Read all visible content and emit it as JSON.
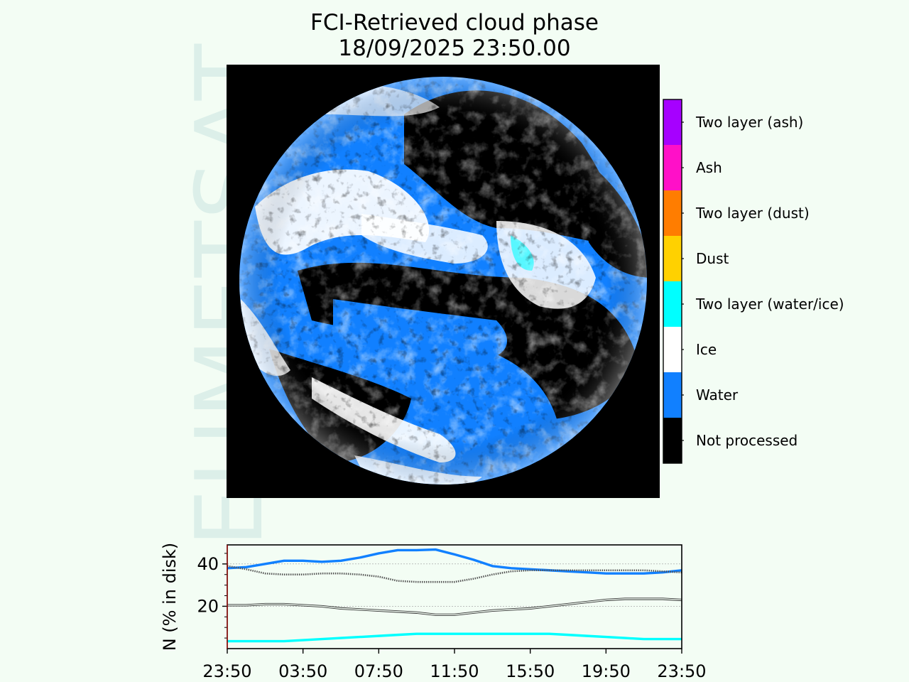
{
  "title_line1": "FCI-Retrieved cloud phase",
  "title_line2": "18/09/2025 23:50.00",
  "watermark": "EUMETSAT",
  "colors": {
    "water": "#1180ff",
    "ice": "#ffffff",
    "two_layer_water_ice": "#00ffff",
    "not_processed": "#000000",
    "background": "#f3fdf4"
  },
  "colorbar": {
    "classes": [
      {
        "label": "Two layer (ash)",
        "color": "#a600ff"
      },
      {
        "label": "Ash",
        "color": "#ff10c8"
      },
      {
        "label": "Two layer (dust)",
        "color": "#ff7d00"
      },
      {
        "label": "Dust",
        "color": "#ffd100"
      },
      {
        "label": "Two layer (water/ice)",
        "color": "#00ffff"
      },
      {
        "label": "Ice",
        "color": "#ffffff"
      },
      {
        "label": "Water",
        "color": "#1180ff"
      },
      {
        "label": "Not processed",
        "color": "#000000"
      }
    ]
  },
  "chart_data": {
    "type": "line",
    "ylabel": "N (% in disk)",
    "x_ticks": [
      "23:50",
      "03:50",
      "07:50",
      "11:50",
      "15:50",
      "19:50",
      "23:50"
    ],
    "x": [
      0,
      1,
      2,
      3,
      4,
      5,
      6,
      7,
      8,
      9,
      10,
      11,
      12,
      13,
      14,
      15,
      16,
      17,
      18,
      19,
      20,
      21,
      22,
      23,
      24
    ],
    "yticks": [
      20,
      40
    ],
    "ylim": [
      0,
      49
    ],
    "grid": "horizontal",
    "series": [
      {
        "color": "#1180ff",
        "style": "solid-thick",
        "values": [
          38,
          38.5,
          40,
          41.5,
          41.5,
          41,
          41.5,
          43,
          45,
          46.5,
          46.5,
          46.8,
          44.5,
          42,
          39,
          38,
          37.5,
          37,
          36.5,
          36,
          35.5,
          35.5,
          35.5,
          36,
          37
        ]
      },
      {
        "color": "#555555",
        "style": "dotted",
        "values": [
          39,
          37.5,
          35.5,
          35,
          35,
          35.5,
          35.5,
          35,
          34,
          32,
          31.5,
          31.5,
          31.5,
          33,
          35,
          36.5,
          37,
          37,
          37,
          37,
          37,
          37,
          37,
          36.5,
          36
        ]
      },
      {
        "color": "#333333",
        "style": "thin-double",
        "values": [
          20.5,
          20.5,
          21,
          21,
          20.5,
          20,
          19,
          18.5,
          18,
          17.5,
          17,
          16,
          16,
          17,
          18,
          18.5,
          19,
          20,
          21,
          22,
          23,
          23.5,
          23.5,
          23.5,
          23
        ]
      },
      {
        "color": "#00ffff",
        "style": "solid-thick",
        "values": [
          3.5,
          3.5,
          3.5,
          3.5,
          4,
          4.5,
          5,
          5.5,
          6,
          6.5,
          7,
          7,
          7,
          7,
          7,
          7,
          7,
          7,
          6.5,
          6,
          5.5,
          5,
          4.5,
          4.5,
          4.5
        ]
      }
    ]
  }
}
